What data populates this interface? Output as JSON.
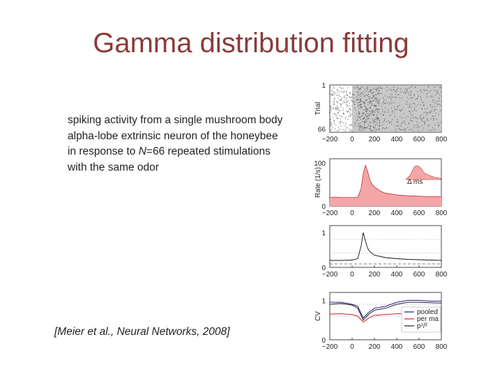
{
  "slide": {
    "title": "Gamma distribution fitting",
    "description_parts": [
      "spiking activity from a single mushroom body alpha-lobe extrinsic neuron of the honeybee in response to ",
      "N",
      "=66 repeated stimulations with the same odor"
    ],
    "citation": "[Meier et al., Neural Networks, 2008]"
  },
  "chart_data": [
    {
      "type": "scatter",
      "title": "",
      "ylabel": "Trial",
      "xlabel": "",
      "x_ticks": [
        -200,
        0,
        200,
        400,
        600,
        800
      ],
      "y_ticks": [
        1,
        66
      ],
      "xlim": [
        -200,
        800
      ],
      "ylim": [
        1,
        66
      ],
      "stimulus_window": [
        0,
        800
      ],
      "colors": {
        "dots": "#333333",
        "stimulus_bg": "#c8c8c8"
      }
    },
    {
      "type": "area",
      "ylabel": "Rate (1/s)",
      "x_ticks": [
        -200,
        0,
        200,
        400,
        600,
        800
      ],
      "y_ticks": [
        0,
        100
      ],
      "xlim": [
        -200,
        800
      ],
      "ylim": [
        0,
        110
      ],
      "x": [
        -200,
        -150,
        -100,
        -50,
        0,
        50,
        80,
        100,
        120,
        140,
        160,
        180,
        200,
        250,
        300,
        400,
        500,
        600,
        700,
        800
      ],
      "values": [
        20,
        21,
        20,
        20,
        20,
        20,
        40,
        75,
        95,
        80,
        60,
        50,
        45,
        35,
        30,
        26,
        24,
        23,
        22,
        22
      ],
      "inset_label": "Δ ms",
      "colors": {
        "fill": "#f4a6a6",
        "line": "#c03030"
      }
    },
    {
      "type": "line",
      "ylabel": "",
      "x_ticks": [
        -200,
        0,
        200,
        400,
        600,
        800
      ],
      "y_ticks": [
        0,
        1
      ],
      "xlim": [
        -200,
        800
      ],
      "ylim": [
        0,
        1.2
      ],
      "x": [
        -200,
        -100,
        0,
        50,
        80,
        100,
        120,
        140,
        160,
        200,
        300,
        400,
        500,
        600,
        700,
        800
      ],
      "values": [
        0.2,
        0.2,
        0.21,
        0.25,
        0.6,
        1.0,
        0.75,
        0.55,
        0.45,
        0.35,
        0.28,
        0.25,
        0.23,
        0.22,
        0.21,
        0.2
      ],
      "reference_y": 0.1,
      "colors": {
        "line": "#111111",
        "reference": "#555555"
      }
    },
    {
      "type": "line",
      "ylabel": "CV",
      "x_ticks": [
        -200,
        0,
        200,
        400,
        600,
        800
      ],
      "y_ticks": [
        0,
        1
      ],
      "xlim": [
        -200,
        800
      ],
      "ylim": [
        0,
        1.2
      ],
      "x": [
        -200,
        -100,
        0,
        50,
        100,
        150,
        200,
        300,
        400,
        500,
        600,
        700,
        800
      ],
      "series": [
        {
          "name": "pooled",
          "values": [
            0.95,
            0.95,
            0.9,
            0.85,
            0.55,
            0.7,
            0.8,
            0.85,
            0.95,
            1.0,
            1.0,
            0.98,
            0.98
          ]
        },
        {
          "name": "per ma",
          "values": [
            0.65,
            0.66,
            0.64,
            0.6,
            0.45,
            0.55,
            0.62,
            0.64,
            0.66,
            0.66,
            0.65,
            0.66,
            0.66
          ]
        },
        {
          "name": "p¹/²",
          "values": [
            0.9,
            0.92,
            0.88,
            0.8,
            0.5,
            0.65,
            0.75,
            0.8,
            0.9,
            0.95,
            0.95,
            0.94,
            0.93
          ]
        }
      ],
      "colors": {
        "pooled": "#1a1a8c",
        "per ma": "#d02020",
        "p¹/²": "#222222"
      }
    }
  ]
}
